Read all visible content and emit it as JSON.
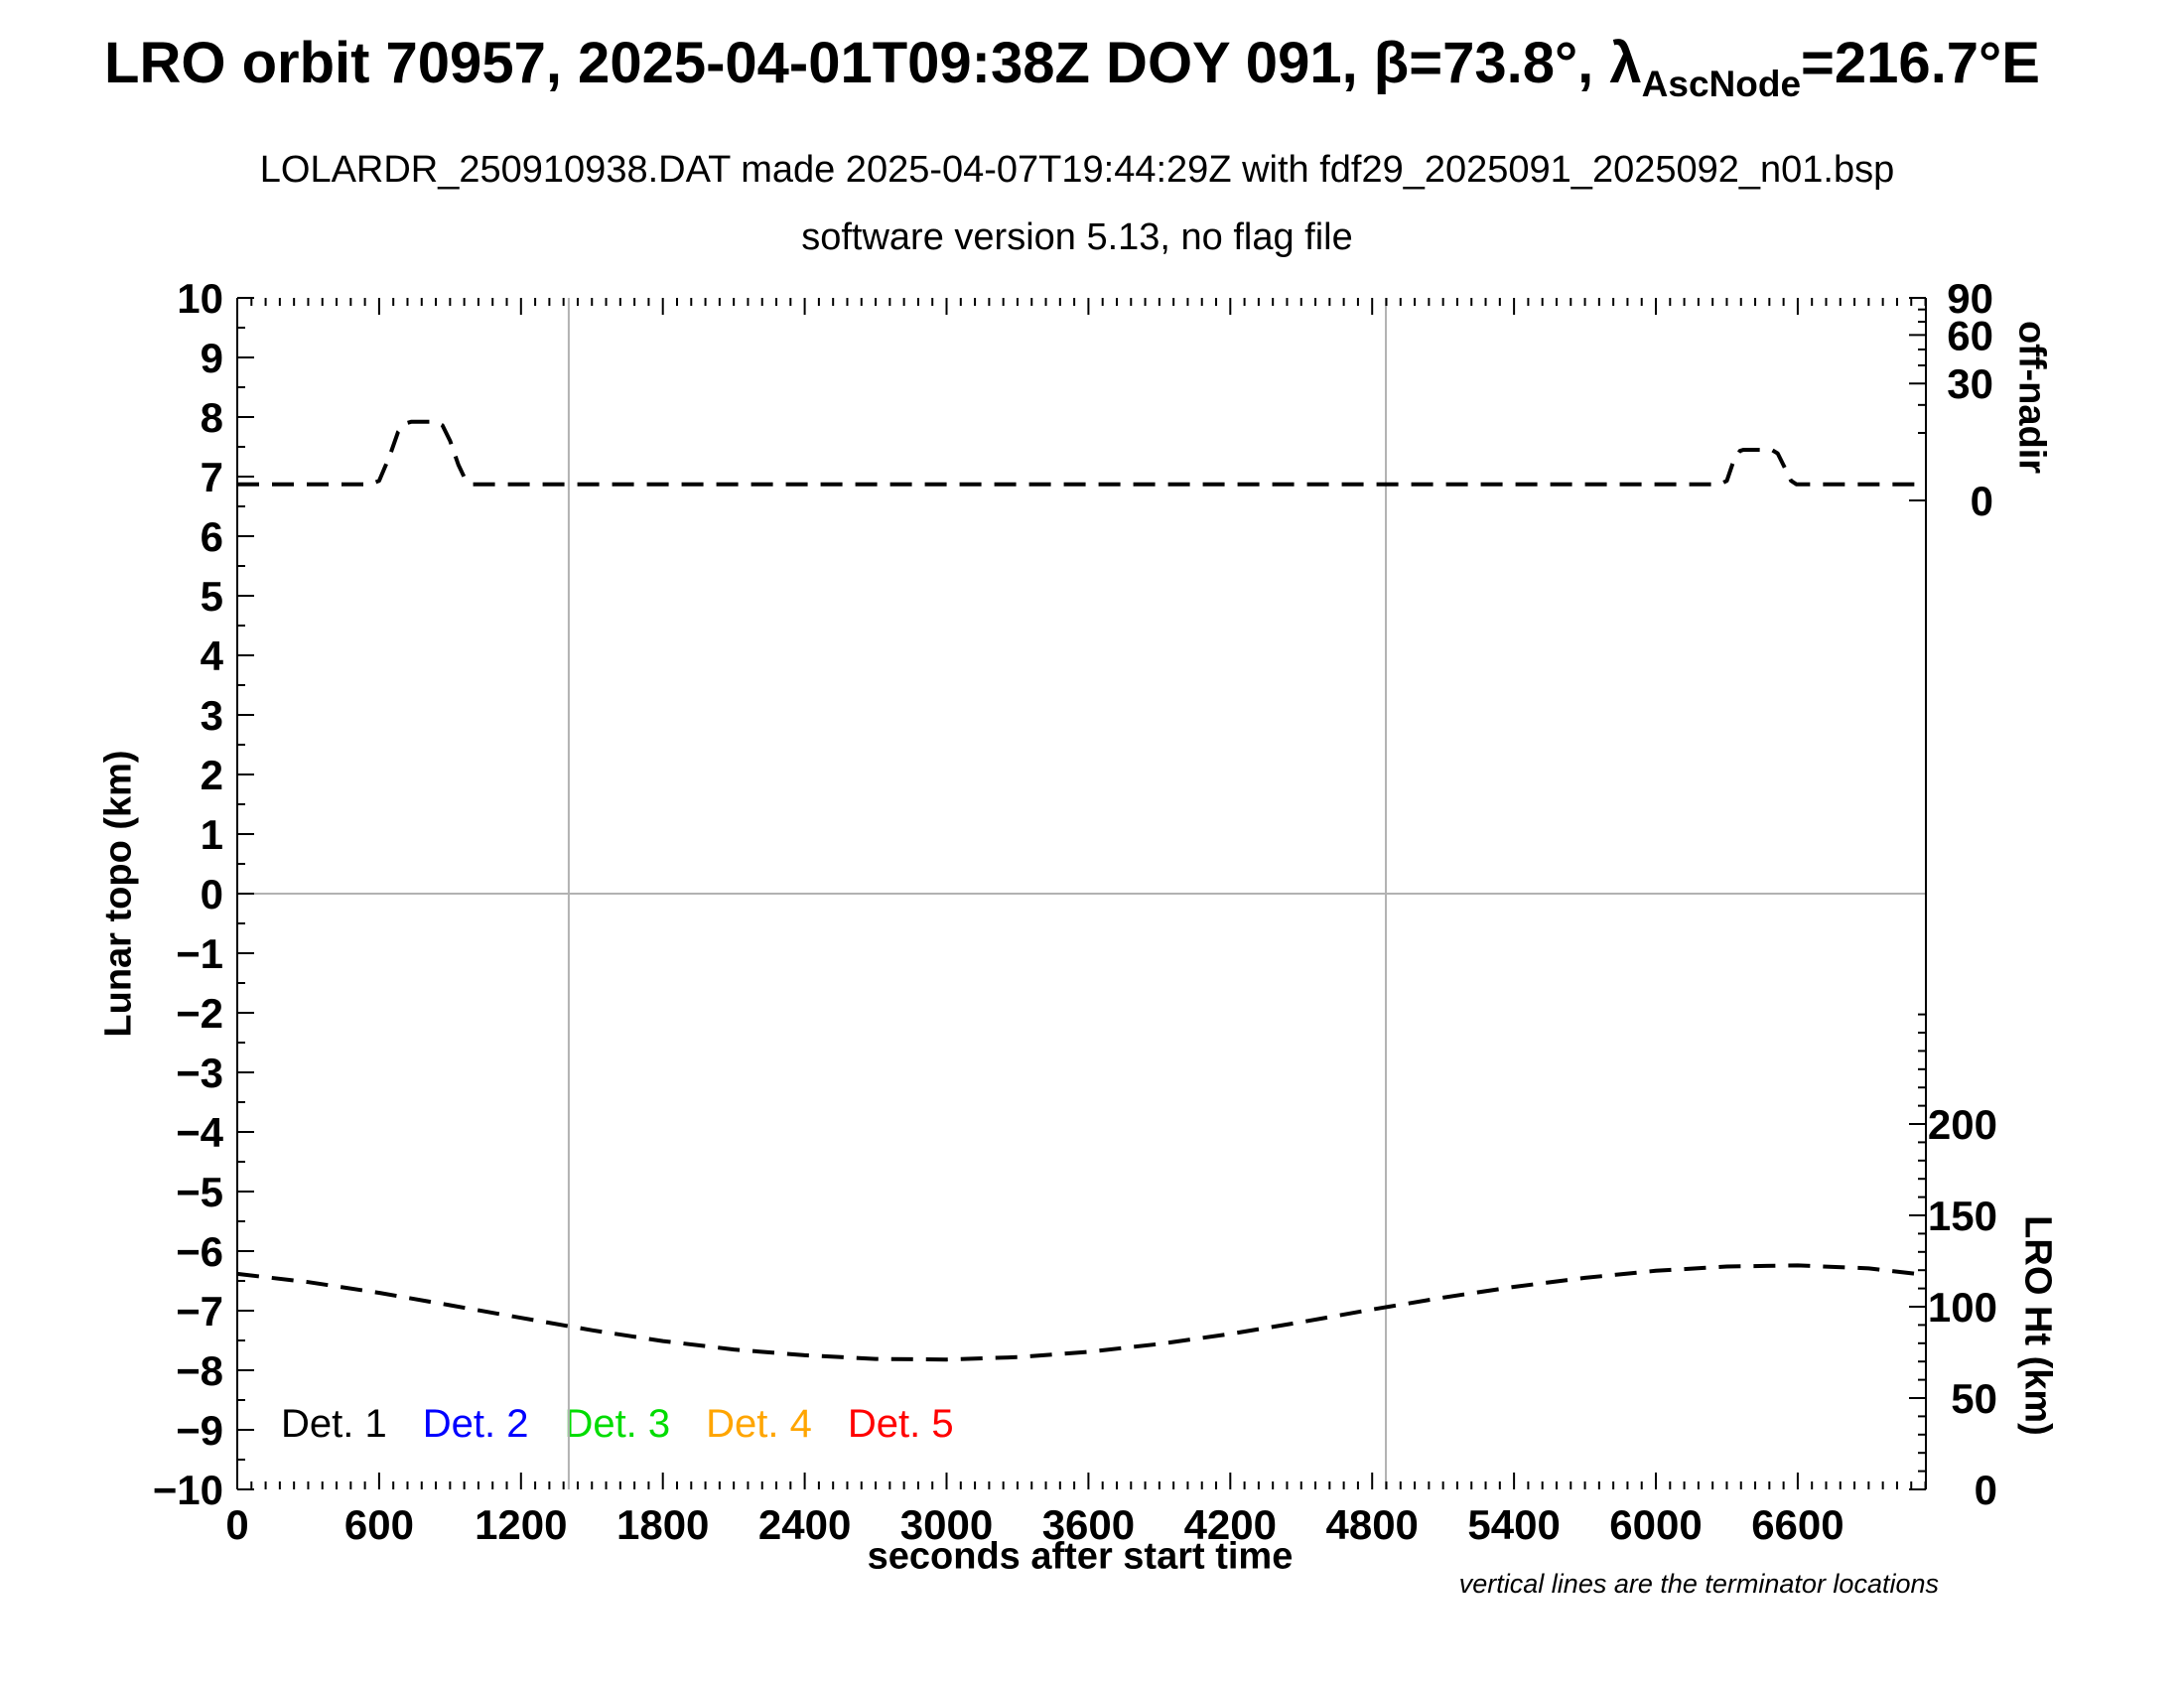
{
  "header": {
    "title": {
      "part1": "LRO orbit 70957, 2025-04-01T09:38Z DOY 091, β=73.8°, λ",
      "subscript": "AscNode",
      "part2": "=216.7°E"
    },
    "subtitle": "LOLARDR_250910938.DAT made 2025-04-07T19:44:29Z with fdf29_2025091_2025092_n01.bsp",
    "subtitle2": "software version 5.13, no flag file"
  },
  "footnote": "vertical lines are the terminator locations",
  "colors": {
    "det1": "#000000",
    "det2": "#0000ff",
    "det3": "#00dc00",
    "det4": "#ffa500",
    "det5": "#ff0000",
    "grid_gray": "#b2b2b2",
    "axis": "#000000"
  },
  "legend": [
    {
      "label": "Det. 1",
      "color_key": "det1"
    },
    {
      "label": "Det. 2",
      "color_key": "det2"
    },
    {
      "label": "Det. 3",
      "color_key": "det3"
    },
    {
      "label": "Det. 4",
      "color_key": "det4"
    },
    {
      "label": "Det. 5",
      "color_key": "det5"
    }
  ],
  "chart_data": {
    "type": "line",
    "x_axis": {
      "label": "seconds after start time",
      "min": 0,
      "max": 7142,
      "major_tick": 600,
      "minor_tick": 60,
      "labeled_ticks": [
        0,
        600,
        1200,
        1800,
        2400,
        3000,
        3600,
        4200,
        4800,
        5400,
        6000,
        6600
      ]
    },
    "y_left": {
      "label": "Lunar topo (km)",
      "min": -10,
      "max": 10,
      "major_tick": 1,
      "minor_tick": 0.5
    },
    "y_right_top": {
      "label": "off-nadir",
      "unit": "degrees",
      "major_ticks": [
        90,
        60,
        30,
        0
      ],
      "minor_ticks": [
        80,
        70,
        50,
        40,
        20,
        10
      ],
      "map_to_topo": "topo = a + b*sqrt(deg/90)",
      "a": 6.6,
      "b": 3.4
    },
    "y_right_bottom": {
      "label": "LRO Ht (km)",
      "major_ticks": [
        0,
        50,
        100,
        150,
        200
      ],
      "minor_step": 10,
      "minor_max": 260,
      "km_per_topo_unit": 32.61,
      "topo_at_zero_km": -10
    },
    "zero_line_topo": 0,
    "terminator_lines_sec": [
      1402,
      4858
    ],
    "series": [
      {
        "name": "off-nadir angle",
        "style": "dashed",
        "color": "#000000",
        "units_y": "lunar-topo axis units (km scale)",
        "approx_deg": {
          "baseline": 0.6,
          "bump1_peak": 13.6,
          "bump2_peak": 5.7
        },
        "points": [
          [
            0,
            6.87
          ],
          [
            560,
            6.87
          ],
          [
            600,
            6.93
          ],
          [
            645,
            7.35
          ],
          [
            680,
            7.75
          ],
          [
            710,
            7.89
          ],
          [
            735,
            7.92
          ],
          [
            840,
            7.92
          ],
          [
            868,
            7.86
          ],
          [
            900,
            7.6
          ],
          [
            935,
            7.2
          ],
          [
            965,
            6.95
          ],
          [
            990,
            6.87
          ],
          [
            6270,
            6.87
          ],
          [
            6300,
            6.93
          ],
          [
            6330,
            7.28
          ],
          [
            6355,
            7.43
          ],
          [
            6370,
            7.45
          ],
          [
            6490,
            7.45
          ],
          [
            6515,
            7.39
          ],
          [
            6545,
            7.15
          ],
          [
            6572,
            6.93
          ],
          [
            6595,
            6.87
          ],
          [
            7142,
            6.87
          ]
        ]
      },
      {
        "name": "LRO height",
        "style": "dashed",
        "color": "#000000",
        "units_x": "sec",
        "units_y": "km",
        "points_km": [
          [
            0,
            118.0
          ],
          [
            300,
            113.5
          ],
          [
            600,
            107.6
          ],
          [
            900,
            100.8
          ],
          [
            1200,
            93.9
          ],
          [
            1500,
            87.1
          ],
          [
            1800,
            81.2
          ],
          [
            2100,
            76.6
          ],
          [
            2400,
            73.4
          ],
          [
            2700,
            71.4
          ],
          [
            3000,
            71.1
          ],
          [
            3300,
            72.4
          ],
          [
            3600,
            75.3
          ],
          [
            3900,
            79.6
          ],
          [
            4200,
            85.1
          ],
          [
            4500,
            91.6
          ],
          [
            4800,
            98.5
          ],
          [
            5100,
            105.0
          ],
          [
            5400,
            110.9
          ],
          [
            5700,
            115.8
          ],
          [
            6000,
            119.7
          ],
          [
            6300,
            122.0
          ],
          [
            6600,
            122.6
          ],
          [
            6900,
            121.0
          ],
          [
            7142,
            117.4
          ]
        ]
      }
    ]
  }
}
